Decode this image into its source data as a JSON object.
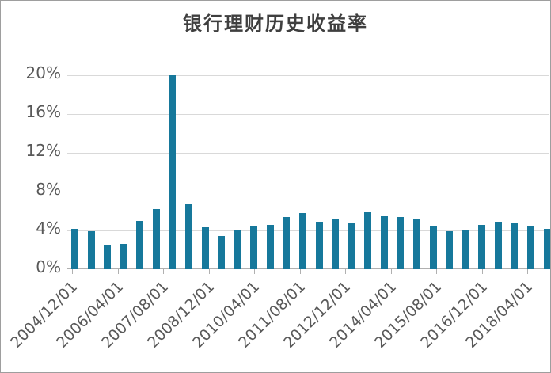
{
  "chart_data": {
    "type": "bar",
    "title": "银行理财历史收益率",
    "values": [
      4.2,
      3.9,
      2.5,
      2.6,
      5.0,
      6.2,
      20.0,
      6.7,
      4.3,
      3.4,
      4.1,
      4.5,
      4.6,
      5.4,
      5.8,
      4.9,
      5.2,
      4.8,
      5.9,
      5.5,
      5.4,
      5.2,
      4.5,
      3.9,
      4.1,
      4.6,
      4.9,
      4.8,
      4.5,
      4.2
    ],
    "x_tick_labels": [
      "2004/12/01",
      "2006/04/01",
      "2007/08/01",
      "2008/12/01",
      "2010/04/01",
      "2011/08/01",
      "2012/12/01",
      "2014/04/01",
      "2015/08/01",
      "2016/12/01",
      "2018/04/01"
    ],
    "y_tick_labels": [
      "0%",
      "4%",
      "8%",
      "12%",
      "16%",
      "20%"
    ],
    "y_step": 4,
    "ylim": [
      0,
      20
    ],
    "xlabel": "",
    "ylabel": "",
    "grid": true,
    "legend_position": "none",
    "bar_color": "#16789b",
    "label_color": "#595959",
    "title_color": "#3f3f3f",
    "gridline_color": "#d9d9d9",
    "axis_line_color": "#b0b0b0"
  }
}
